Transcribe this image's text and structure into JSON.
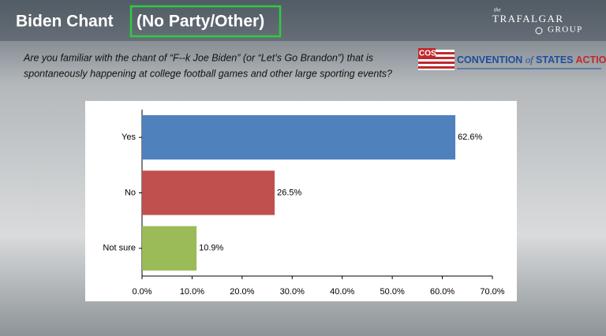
{
  "header": {
    "title": "Biden Chant",
    "title_highlight": "(No Party/Other)",
    "question_line1": "Are you familiar with the chant of “F--k Joe Biden” (or “Let’s Go Brandon”) that is",
    "question_line2": "spontaneously happening at college football games and other large sporting events?",
    "logo_the": "the",
    "logo_trafalgar": "TRAFALGAR",
    "logo_group": "GROUP",
    "cos_mark": "COS",
    "cos_convention": "CONVENTION",
    "cos_of": "of",
    "cos_states": "STATES",
    "cos_action": "ACTION"
  },
  "chart_data": {
    "type": "bar",
    "orientation": "horizontal",
    "categories": [
      "Yes",
      "No",
      "Not sure"
    ],
    "values": [
      62.6,
      26.5,
      10.9
    ],
    "value_labels": [
      "62.6%",
      "26.5%",
      "10.9%"
    ],
    "colors": [
      "#4f81bd",
      "#c0504d",
      "#9bbb59"
    ],
    "xlim": [
      0,
      70
    ],
    "xticks": [
      {
        "value": 0,
        "label": "0.0%"
      },
      {
        "value": 10,
        "label": "10.0%"
      },
      {
        "value": 20,
        "label": "20.0%"
      },
      {
        "value": 30,
        "label": "30.0%"
      },
      {
        "value": 40,
        "label": "40.0%"
      },
      {
        "value": 50,
        "label": "50.0%"
      },
      {
        "value": 60,
        "label": "60.0%"
      },
      {
        "value": 70,
        "label": "70.0%"
      }
    ],
    "grid": false
  }
}
